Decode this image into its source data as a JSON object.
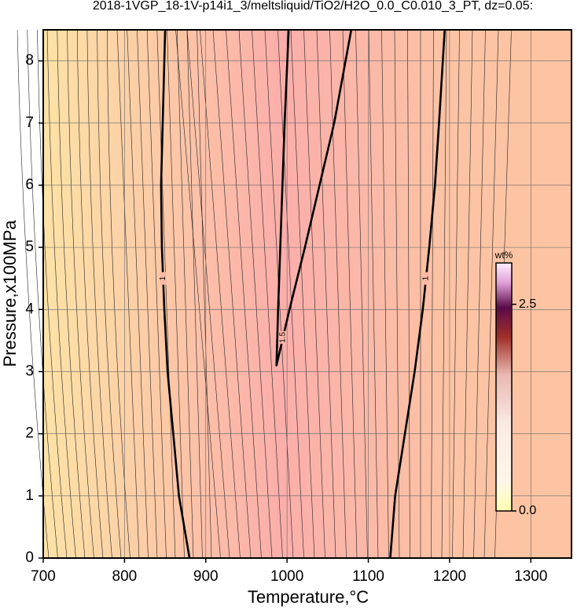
{
  "chart_data": {
    "type": "contour",
    "title": "2018-1VGP_18-1V-p14i1_3/meltsliquid/TiO2/H2O_0.0_C0.010_3_PT, dz=0.05:",
    "x_label": "Temperature,°C",
    "y_label": "Pressure,x100MPa",
    "xlim": [
      700,
      1350
    ],
    "ylim": [
      0,
      8.5
    ],
    "xticks": [
      700,
      800,
      900,
      1000,
      1100,
      1200,
      1300
    ],
    "yticks": [
      0,
      1,
      2,
      3,
      4,
      5,
      6,
      7,
      8
    ],
    "grid": true,
    "contours": [
      {
        "level": 1,
        "label": "1",
        "x": [
          880,
          867,
          860,
          853,
          849,
          846,
          845,
          847,
          850
        ],
        "y": [
          0,
          1,
          2,
          3,
          4,
          5,
          6,
          7,
          8.5
        ]
      },
      {
        "level": 1,
        "label": "1",
        "x": [
          1127,
          1133,
          1145,
          1157,
          1167,
          1175,
          1182,
          1187,
          1194
        ],
        "y": [
          0,
          1,
          2,
          3,
          4,
          5,
          6,
          7,
          8.5
        ]
      },
      {
        "level": 1.5,
        "label": "1.5",
        "x": [
          1002,
          997,
          993,
          989,
          987,
          1003,
          1022,
          1040,
          1058,
          1079
        ],
        "y": [
          8.5,
          7,
          5.5,
          4,
          3.1,
          4,
          5,
          6,
          7,
          8.5
        ]
      }
    ],
    "colorbar": {
      "label": "wt%",
      "clim": [
        0,
        3
      ],
      "ticks": [
        {
          "value": 0,
          "label": "0.0"
        },
        {
          "value": 2.5,
          "label": "2.5"
        }
      ]
    }
  }
}
